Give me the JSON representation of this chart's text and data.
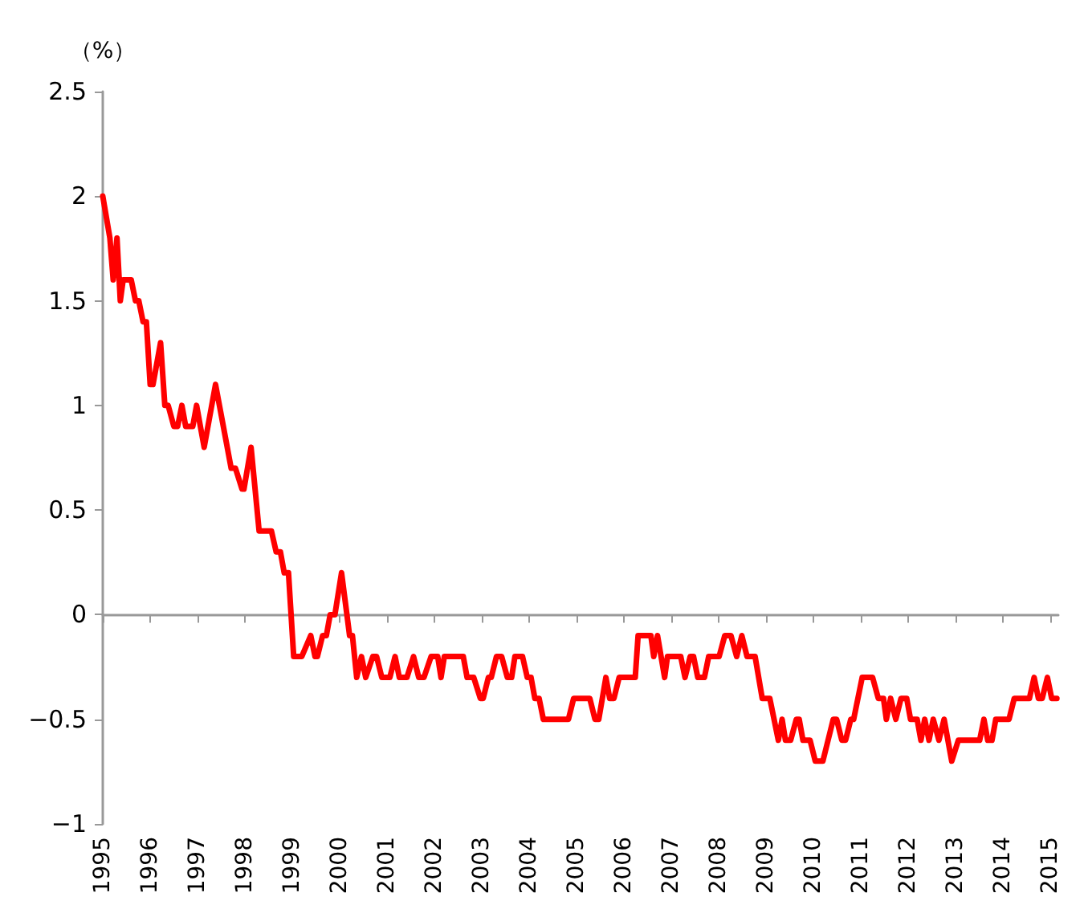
{
  "chart_data": {
    "type": "line",
    "ylabel": "（%）",
    "xlim": [
      1995,
      2015.17
    ],
    "xticks": [
      1995,
      1996,
      1997,
      1998,
      1999,
      2000,
      2001,
      2002,
      2003,
      2004,
      2005,
      2006,
      2007,
      2008,
      2009,
      2010,
      2011,
      2012,
      2013,
      2014,
      2015
    ],
    "ylim": [
      -1,
      2.5
    ],
    "yticks": [
      -1,
      -0.5,
      0,
      0.5,
      1,
      1.5,
      2,
      2.5
    ],
    "marker": "none",
    "line_style": "solid",
    "series": [
      {
        "color": "#ff0000",
        "x": [
          1995.0,
          1995.15,
          1995.22,
          1995.3,
          1995.37,
          1995.43,
          1995.48,
          1995.6,
          1995.69,
          1995.76,
          1995.85,
          1995.92,
          1996.0,
          1996.06,
          1996.22,
          1996.31,
          1996.38,
          1996.5,
          1996.58,
          1996.67,
          1996.75,
          1996.9,
          1996.98,
          1997.14,
          1997.38,
          1997.71,
          1997.8,
          1997.94,
          1997.98,
          1998.13,
          1998.3,
          1998.56,
          1998.66,
          1998.75,
          1998.83,
          1998.92,
          1999.03,
          1999.2,
          1999.39,
          1999.48,
          1999.53,
          1999.64,
          1999.72,
          1999.8,
          1999.9,
          2000.04,
          2000.21,
          2000.27,
          2000.36,
          2000.46,
          2000.55,
          2000.7,
          2000.78,
          2000.89,
          2001.06,
          2001.17,
          2001.26,
          2001.42,
          2001.56,
          2001.67,
          2001.78,
          2001.93,
          2002.07,
          2002.14,
          2002.21,
          2002.61,
          2002.69,
          2002.83,
          2002.97,
          2003.03,
          2003.14,
          2003.2,
          2003.31,
          2003.42,
          2003.54,
          2003.63,
          2003.7,
          2003.86,
          2003.96,
          2004.04,
          2004.12,
          2004.21,
          2004.3,
          2004.83,
          2004.94,
          2005.28,
          2005.39,
          2005.47,
          2005.62,
          2005.7,
          2005.79,
          2005.9,
          2006.24,
          2006.3,
          2006.57,
          2006.63,
          2006.71,
          2006.86,
          2006.92,
          2007.2,
          2007.29,
          2007.4,
          2007.47,
          2007.56,
          2007.7,
          2007.79,
          2008.01,
          2008.13,
          2008.26,
          2008.38,
          2008.49,
          2008.6,
          2008.77,
          2008.92,
          2009.08,
          2009.26,
          2009.34,
          2009.41,
          2009.52,
          2009.64,
          2009.7,
          2009.78,
          2009.93,
          2010.04,
          2010.2,
          2010.31,
          2010.42,
          2010.49,
          2010.6,
          2010.68,
          2010.79,
          2010.85,
          2011.03,
          2011.25,
          2011.37,
          2011.48,
          2011.54,
          2011.63,
          2011.74,
          2011.85,
          2011.97,
          2012.05,
          2012.19,
          2012.27,
          2012.35,
          2012.44,
          2012.53,
          2012.65,
          2012.76,
          2012.84,
          2012.92,
          2013.06,
          2013.51,
          2013.6,
          2013.68,
          2013.77,
          2013.85,
          2014.13,
          2014.24,
          2014.56,
          2014.66,
          2014.75,
          2014.83,
          2014.94,
          2015.03,
          2015.14
        ],
        "values": [
          2.0,
          1.8,
          1.6,
          1.8,
          1.5,
          1.6,
          1.6,
          1.6,
          1.5,
          1.5,
          1.4,
          1.4,
          1.1,
          1.1,
          1.3,
          1.0,
          1.0,
          0.9,
          0.9,
          1.0,
          0.9,
          0.9,
          1.0,
          0.8,
          1.1,
          0.7,
          0.7,
          0.6,
          0.6,
          0.8,
          0.4,
          0.4,
          0.3,
          0.3,
          0.2,
          0.2,
          -0.2,
          -0.2,
          -0.1,
          -0.2,
          -0.2,
          -0.1,
          -0.1,
          0.0,
          0.0,
          0.2,
          -0.1,
          -0.1,
          -0.3,
          -0.2,
          -0.3,
          -0.2,
          -0.2,
          -0.3,
          -0.3,
          -0.2,
          -0.3,
          -0.3,
          -0.2,
          -0.3,
          -0.3,
          -0.2,
          -0.2,
          -0.3,
          -0.2,
          -0.2,
          -0.3,
          -0.3,
          -0.4,
          -0.4,
          -0.3,
          -0.3,
          -0.2,
          -0.2,
          -0.3,
          -0.3,
          -0.2,
          -0.2,
          -0.3,
          -0.3,
          -0.4,
          -0.4,
          -0.5,
          -0.5,
          -0.4,
          -0.4,
          -0.5,
          -0.5,
          -0.3,
          -0.4,
          -0.4,
          -0.3,
          -0.3,
          -0.1,
          -0.1,
          -0.2,
          -0.1,
          -0.3,
          -0.2,
          -0.2,
          -0.3,
          -0.2,
          -0.2,
          -0.3,
          -0.3,
          -0.2,
          -0.2,
          -0.1,
          -0.1,
          -0.2,
          -0.1,
          -0.2,
          -0.2,
          -0.4,
          -0.4,
          -0.6,
          -0.5,
          -0.6,
          -0.6,
          -0.5,
          -0.5,
          -0.6,
          -0.6,
          -0.7,
          -0.7,
          -0.6,
          -0.5,
          -0.5,
          -0.6,
          -0.6,
          -0.5,
          -0.5,
          -0.3,
          -0.3,
          -0.4,
          -0.4,
          -0.5,
          -0.4,
          -0.5,
          -0.4,
          -0.4,
          -0.5,
          -0.5,
          -0.6,
          -0.5,
          -0.6,
          -0.5,
          -0.6,
          -0.5,
          -0.6,
          -0.7,
          -0.6,
          -0.6,
          -0.5,
          -0.6,
          -0.6,
          -0.5,
          -0.5,
          -0.4,
          -0.4,
          -0.3,
          -0.4,
          -0.4,
          -0.3,
          -0.4,
          -0.4
        ]
      }
    ]
  }
}
